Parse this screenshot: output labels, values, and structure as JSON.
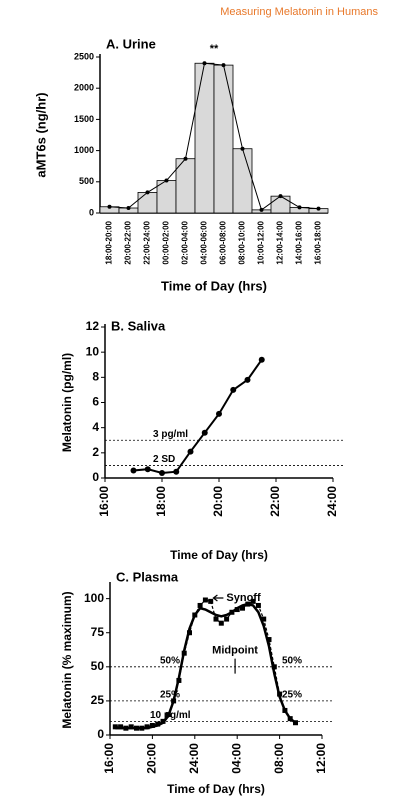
{
  "header": "Measuring Melatonin in Humans",
  "chart_data": [
    {
      "type": "bar",
      "title": "A. Urine",
      "x_label": "Time of Day (hrs)",
      "y_label": "aMT6s (ng/hr)",
      "categories": [
        "18:00-20:00",
        "20:00-22:00",
        "22:00-24:00",
        "00:00-02:00",
        "02:00-04:00",
        "04:00-06:00",
        "06:00-08:00",
        "08:00-10:00",
        "10:00-12:00",
        "12:00-14:00",
        "14:00-16:00",
        "16:00-18:00"
      ],
      "values": [
        100,
        80,
        330,
        520,
        870,
        2400,
        2370,
        1030,
        50,
        270,
        90,
        70
      ],
      "color": "#d9d9d9",
      "overlay_line": true,
      "annotation": "**",
      "ylim": [
        0,
        2500
      ],
      "yticks": [
        0,
        500,
        1000,
        1500,
        2000,
        2500
      ]
    },
    {
      "type": "line",
      "title": "B. Saliva",
      "x_label": "Time of Day (hrs)",
      "y_label": "Melatonin (pg/ml)",
      "x": [
        17,
        17.5,
        18,
        18.5,
        19,
        19.5,
        20,
        20.5,
        21,
        21.5
      ],
      "series": [
        {
          "color": "#000000",
          "marker": "circle",
          "dashed": false,
          "values": [
            0.6,
            0.7,
            0.4,
            0.5,
            2.1,
            3.6,
            5.1,
            7.0,
            7.8,
            9.4
          ]
        }
      ],
      "reference_lines": [
        {
          "value": 3,
          "labels": [
            "3 pg/ml"
          ]
        },
        {
          "value": 1,
          "labels": [
            "2 SD"
          ]
        }
      ],
      "xlim": [
        16,
        24
      ],
      "xticks": [
        {
          "value": 16,
          "label": "16:00"
        },
        {
          "value": 18,
          "label": "18:00"
        },
        {
          "value": 20,
          "label": "20:00"
        },
        {
          "value": 22,
          "label": "22:00"
        },
        {
          "value": 24,
          "label": "24:00"
        }
      ],
      "ylim": [
        0,
        12
      ],
      "yticks": [
        0,
        2,
        4,
        6,
        8,
        10,
        12
      ]
    },
    {
      "type": "line",
      "title": "C. Plasma",
      "x_label": "Time of Day (hrs)",
      "y_label": "Melatonin (% maximum)",
      "x": [
        16.5,
        17,
        17.5,
        18,
        18.5,
        19,
        19.5,
        20,
        20.5,
        21,
        21.5,
        22,
        22.5,
        23,
        23.5,
        24,
        24.5,
        25,
        25.5,
        26,
        26.5,
        27,
        27.5,
        28,
        28.5,
        29,
        29.5,
        30,
        30.5,
        31,
        31.5,
        32,
        32.5,
        33,
        33.5
      ],
      "series": [
        {
          "color": "#000000",
          "marker": "square",
          "dashed": true,
          "values": [
            6,
            6,
            5,
            6,
            5,
            5,
            6,
            7,
            8,
            10,
            15,
            25,
            40,
            60,
            75,
            88,
            95,
            99,
            98,
            85,
            82,
            85,
            90,
            92,
            93,
            96,
            98,
            95,
            85,
            70,
            50,
            30,
            18,
            12,
            9
          ]
        },
        {
          "color": "#000000",
          "marker": "none",
          "dashed": false,
          "values": [
            5,
            5,
            5,
            5,
            5,
            5,
            5,
            6,
            7,
            9,
            14,
            25,
            42,
            62,
            78,
            88,
            93,
            92,
            90,
            88,
            87,
            88,
            90,
            93,
            95,
            96,
            95,
            90,
            80,
            65,
            45,
            28,
            18,
            12,
            9
          ]
        }
      ],
      "reference_lines": [
        {
          "value": 50,
          "labels": [
            "50%",
            "50%"
          ]
        },
        {
          "value": 25,
          "labels": [
            "25%",
            "25%"
          ]
        },
        {
          "value": 10,
          "labels": [
            "10 pg/ml"
          ]
        }
      ],
      "annotations": [
        {
          "text": "Midpoint",
          "x": 27.8
        },
        {
          "text": "Synoff"
        }
      ],
      "xlim": [
        16,
        36
      ],
      "xticks": [
        {
          "value": 16,
          "label": "16:00"
        },
        {
          "value": 20,
          "label": "20:00"
        },
        {
          "value": 24,
          "label": "24:00"
        },
        {
          "value": 28,
          "label": "04:00"
        },
        {
          "value": 32,
          "label": "08:00"
        },
        {
          "value": 36,
          "label": "12:00"
        }
      ],
      "ylim": [
        0,
        110
      ],
      "yticks": [
        0,
        25,
        50,
        75,
        100
      ]
    }
  ]
}
